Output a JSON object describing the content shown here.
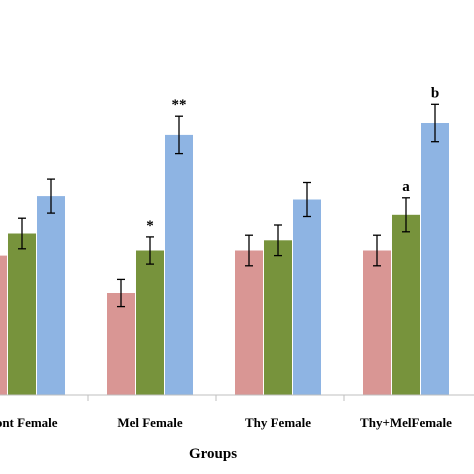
{
  "chart_data": {
    "type": "bar",
    "categories": [
      "Cont Female",
      "Mel Female",
      "Thy Female",
      "Thy+MelFemale"
    ],
    "xlabel": "Groups",
    "series": [
      {
        "values": [
          82,
          60,
          85,
          85
        ],
        "errors": [
          8,
          8,
          9,
          9
        ]
      },
      {
        "values": [
          95,
          85,
          91,
          106
        ],
        "errors": [
          9,
          8,
          9,
          10
        ]
      },
      {
        "values": [
          117,
          153,
          115,
          160
        ],
        "errors": [
          10,
          11,
          10,
          11
        ]
      }
    ],
    "annotations": [
      {
        "category": 1,
        "series": 1,
        "text": "*"
      },
      {
        "category": 1,
        "series": 2,
        "text": "**"
      },
      {
        "category": 3,
        "series": 1,
        "text": "a"
      },
      {
        "category": 3,
        "series": 2,
        "text": "b"
      }
    ],
    "colors": [
      "#d99694",
      "#77933c",
      "#8eb4e3"
    ],
    "ylim": [
      0,
      185
    ],
    "grid": false
  }
}
